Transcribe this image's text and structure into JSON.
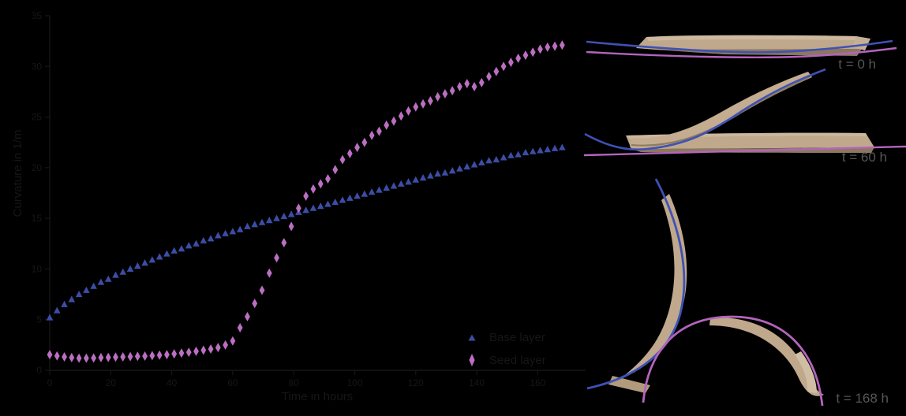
{
  "figure": {
    "description": "Scatter plot of bilayer curvature versus drying time with side-view photographs of the wood strips at three times",
    "background": "#000000"
  },
  "chart_data": {
    "type": "scatter",
    "title": "",
    "xlabel": "Time in hours",
    "ylabel": "Curvature in 1/m",
    "xlim": [
      0,
      175
    ],
    "ylim": [
      0,
      35
    ],
    "xticks": [
      0,
      20,
      40,
      60,
      80,
      100,
      120,
      140,
      160
    ],
    "yticks": [
      0,
      5,
      10,
      15,
      20,
      25,
      30,
      35
    ],
    "grid": false,
    "legend_position": "lower right inside",
    "series": [
      {
        "id": "series-blue",
        "name": "Base layer",
        "marker": "triangle",
        "color": "#3c4da6",
        "x": [
          0,
          2.4,
          4.8,
          7.2,
          9.6,
          12,
          14.4,
          16.8,
          19.2,
          21.6,
          24,
          26.4,
          28.8,
          31.2,
          33.6,
          36,
          38.4,
          40.8,
          43.2,
          45.6,
          48,
          50.4,
          52.8,
          55.2,
          57.6,
          60,
          62.4,
          64.8,
          67.2,
          69.6,
          72,
          74.4,
          76.8,
          79.2,
          81.6,
          84,
          86.4,
          88.8,
          91.2,
          93.6,
          96,
          98.4,
          100.8,
          103.2,
          105.6,
          108,
          110.4,
          112.8,
          115.2,
          117.6,
          120,
          122.4,
          124.8,
          127.2,
          129.6,
          132,
          134.4,
          136.8,
          139.2,
          141.6,
          144,
          146.4,
          148.8,
          151.2,
          153.6,
          156,
          158.4,
          160.8,
          163.2,
          165.6,
          168
        ],
        "y": [
          5.2,
          5.9,
          6.5,
          7.0,
          7.5,
          7.9,
          8.3,
          8.7,
          9.0,
          9.4,
          9.7,
          10.0,
          10.3,
          10.6,
          10.9,
          11.2,
          11.5,
          11.8,
          12.0,
          12.3,
          12.5,
          12.8,
          13.0,
          13.3,
          13.5,
          13.7,
          13.9,
          14.2,
          14.4,
          14.6,
          14.8,
          15.0,
          15.2,
          15.4,
          15.6,
          15.8,
          16.0,
          16.2,
          16.4,
          16.6,
          16.8,
          17.0,
          17.2,
          17.4,
          17.6,
          17.8,
          18.0,
          18.2,
          18.4,
          18.6,
          18.8,
          19.0,
          19.2,
          19.4,
          19.5,
          19.7,
          19.9,
          20.1,
          20.3,
          20.5,
          20.7,
          20.8,
          21.0,
          21.2,
          21.3,
          21.5,
          21.6,
          21.7,
          21.8,
          21.9,
          22.0
        ]
      },
      {
        "id": "series-pink",
        "name": "Seed layer",
        "marker": "thin-diamond",
        "color": "#bc6fc2",
        "x": [
          0,
          2.4,
          4.8,
          7.2,
          9.6,
          12,
          14.4,
          16.8,
          19.2,
          21.6,
          24,
          26.4,
          28.8,
          31.2,
          33.6,
          36,
          38.4,
          40.8,
          43.2,
          45.6,
          48,
          50.4,
          52.8,
          55.2,
          57.6,
          60,
          62.4,
          64.8,
          67.2,
          69.6,
          72,
          74.4,
          76.8,
          79.2,
          81.6,
          84,
          86.4,
          88.8,
          91.2,
          93.6,
          96,
          98.4,
          100.8,
          103.2,
          105.6,
          108,
          110.4,
          112.8,
          115.2,
          117.6,
          120,
          122.4,
          124.8,
          127.2,
          129.6,
          132,
          134.4,
          136.8,
          139.2,
          141.6,
          144,
          146.4,
          148.8,
          151.2,
          153.6,
          156,
          158.4,
          160.8,
          163.2,
          165.6,
          168
        ],
        "y": [
          1.55,
          1.42,
          1.32,
          1.25,
          1.2,
          1.2,
          1.22,
          1.25,
          1.27,
          1.3,
          1.32,
          1.35,
          1.38,
          1.4,
          1.45,
          1.5,
          1.55,
          1.62,
          1.7,
          1.78,
          1.88,
          1.98,
          2.1,
          2.25,
          2.5,
          2.9,
          4.2,
          5.3,
          6.6,
          7.9,
          9.6,
          11.1,
          12.6,
          14.2,
          16.0,
          17.2,
          17.9,
          18.4,
          18.9,
          19.8,
          20.8,
          21.4,
          22.0,
          22.5,
          23.2,
          23.6,
          24.2,
          24.6,
          25.1,
          25.6,
          26.0,
          26.3,
          26.6,
          27.0,
          27.3,
          27.6,
          28.0,
          28.3,
          28.0,
          28.4,
          29.0,
          29.5,
          30.0,
          30.4,
          30.8,
          31.1,
          31.4,
          31.7,
          31.9,
          32.0,
          32.1
        ]
      }
    ]
  },
  "photos": [
    {
      "label": "t = 0 h"
    },
    {
      "label": "t = 60 h"
    },
    {
      "label": "t = 168 h"
    }
  ],
  "colors": {
    "background": "#000000",
    "axis_text": "#161616",
    "photo_label": "#565656",
    "model_blue": "#3f51b5",
    "model_pink": "#b464bd",
    "wood_face": "#bfa88c",
    "wood_highlight": "#d3c1a7",
    "wood_edge": "#8c785f"
  }
}
